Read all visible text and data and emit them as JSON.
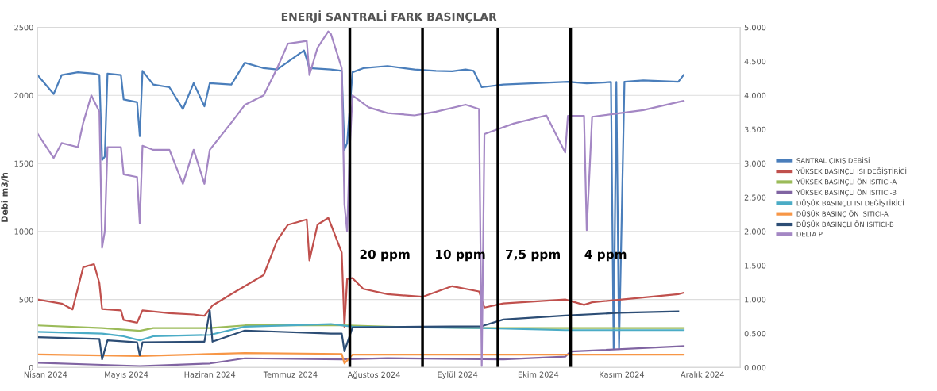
{
  "chart_data": {
    "type": "line",
    "title": "ENERJİ SANTRALİ FARK BASINÇLAR",
    "ylabel": "Debi m3/h",
    "xlim": [
      "2024-03-29",
      "2024-12-15"
    ],
    "xticks": [
      {
        "value": "2024-04-01",
        "label": "Nisan 2024"
      },
      {
        "value": "2024-05-01",
        "label": "Mayıs 2024"
      },
      {
        "value": "2024-06-01",
        "label": "Haziran 2024"
      },
      {
        "value": "2024-07-01",
        "label": "Temmuz 2024"
      },
      {
        "value": "2024-08-01",
        "label": "Ağustos 2024"
      },
      {
        "value": "2024-09-01",
        "label": "Eylül 2024"
      },
      {
        "value": "2024-10-01",
        "label": "Ekim 2024"
      },
      {
        "value": "2024-11-01",
        "label": "Kasım 2024"
      },
      {
        "value": "2024-12-01",
        "label": "Aralık 2024"
      }
    ],
    "ylim": [
      0,
      2500
    ],
    "yticks": [
      0,
      500,
      1000,
      1500,
      2000,
      2500
    ],
    "y2lim": [
      0,
      5
    ],
    "y2ticks": [
      {
        "value": 0,
        "label": "0,000"
      },
      {
        "value": 0.5,
        "label": "0,500"
      },
      {
        "value": 1,
        "label": "1,000"
      },
      {
        "value": 1.5,
        "label": "1,500"
      },
      {
        "value": 2,
        "label": "2,000"
      },
      {
        "value": 2.5,
        "label": "2,500"
      },
      {
        "value": 3,
        "label": "3,000"
      },
      {
        "value": 3.5,
        "label": "3,500"
      },
      {
        "value": 4,
        "label": "4,000"
      },
      {
        "value": 4.5,
        "label": "4,500"
      },
      {
        "value": 5,
        "label": "5,000"
      }
    ],
    "grid": "y",
    "legend": "right",
    "series": [
      {
        "name": "SANTRAL ÇIKIŞ DEBİSİ",
        "color": "#4a7ebb",
        "x": [
          "2024-03-29",
          "2024-04-04",
          "2024-04-07",
          "2024-04-13",
          "2024-04-19",
          "2024-04-21",
          "2024-04-22",
          "2024-04-23",
          "2024-04-24",
          "2024-04-29",
          "2024-04-30",
          "2024-05-05",
          "2024-05-06",
          "2024-05-07",
          "2024-05-11",
          "2024-05-17",
          "2024-05-22",
          "2024-05-26",
          "2024-05-30",
          "2024-06-01",
          "2024-06-09",
          "2024-06-14",
          "2024-06-21",
          "2024-06-26",
          "2024-07-06",
          "2024-07-08",
          "2024-07-16",
          "2024-07-20",
          "2024-07-21",
          "2024-07-22",
          "2024-07-24",
          "2024-07-28",
          "2024-08-06",
          "2024-08-16",
          "2024-08-24",
          "2024-08-30",
          "2024-09-04",
          "2024-09-07",
          "2024-09-10",
          "2024-09-18",
          "2024-09-30",
          "2024-10-12",
          "2024-10-19",
          "2024-10-28",
          "2024-10-29",
          "2024-10-30",
          "2024-10-31",
          "2024-11-02",
          "2024-11-09",
          "2024-11-22",
          "2024-11-24"
        ],
        "values": [
          2150,
          2010,
          2150,
          2170,
          2160,
          2150,
          1525,
          1550,
          2160,
          2150,
          1970,
          1950,
          1700,
          2180,
          2080,
          2060,
          1900,
          2090,
          1920,
          2090,
          2080,
          2240,
          2200,
          2190,
          2330,
          2200,
          2190,
          2180,
          1600,
          1650,
          2170,
          2200,
          2216,
          2190,
          2180,
          2177,
          2190,
          2180,
          2060,
          2080,
          2090,
          2100,
          2088,
          2098,
          140,
          2098,
          140,
          2100,
          2110,
          2100,
          2150
        ]
      },
      {
        "name": "YÜKSEK BASINÇLI ISI DEĞİŞTİRİCİ",
        "color": "#c0504d",
        "x": [
          "2024-03-29",
          "2024-04-07",
          "2024-04-11",
          "2024-04-15",
          "2024-04-19",
          "2024-04-21",
          "2024-04-22",
          "2024-04-29",
          "2024-04-30",
          "2024-05-05",
          "2024-05-07",
          "2024-05-17",
          "2024-05-26",
          "2024-05-30",
          "2024-06-02",
          "2024-06-09",
          "2024-06-21",
          "2024-06-26",
          "2024-06-30",
          "2024-07-07",
          "2024-07-08",
          "2024-07-11",
          "2024-07-15",
          "2024-07-16",
          "2024-07-20",
          "2024-07-21",
          "2024-07-22",
          "2024-07-24",
          "2024-07-28",
          "2024-08-06",
          "2024-08-19",
          "2024-08-30",
          "2024-09-09",
          "2024-09-11",
          "2024-09-18",
          "2024-10-11",
          "2024-10-18",
          "2024-10-21",
          "2024-11-22",
          "2024-11-24"
        ],
        "values": [
          500,
          470,
          427,
          738,
          760,
          620,
          430,
          420,
          350,
          330,
          420,
          400,
          390,
          380,
          456,
          540,
          680,
          933,
          1049,
          1088,
          787,
          1050,
          1100,
          1050,
          845,
          300,
          650,
          657,
          578,
          539,
          520,
          598,
          559,
          441,
          471,
          500,
          461,
          480,
          539,
          550
        ]
      },
      {
        "name": "YÜKSEK BASINÇLI ÖN ISITICI-A",
        "color": "#9bbb59",
        "x": [
          "2024-03-29",
          "2024-04-22",
          "2024-05-06",
          "2024-05-11",
          "2024-06-01",
          "2024-06-14",
          "2024-07-20",
          "2024-08-06",
          "2024-09-10",
          "2024-10-11",
          "2024-11-24"
        ],
        "values": [
          310,
          290,
          270,
          290,
          290,
          310,
          310,
          300,
          290,
          290,
          290
        ]
      },
      {
        "name": "YÜKSEK BASINÇLI ÖN ISITICI-B",
        "color": "#8064a2",
        "x": [
          "2024-03-29",
          "2024-04-22",
          "2024-05-06",
          "2024-06-01",
          "2024-06-14",
          "2024-07-20",
          "2024-08-06",
          "2024-09-18",
          "2024-10-11",
          "2024-10-13",
          "2024-11-24"
        ],
        "values": [
          35,
          20,
          10,
          30,
          68,
          60,
          69,
          60,
          80,
          118,
          157
        ]
      },
      {
        "name": "DÜŞÜK BASINÇLI ISI DEĞİŞTİRİCİ",
        "color": "#4bacc6",
        "x": [
          "2024-03-29",
          "2024-04-22",
          "2024-04-30",
          "2024-05-06",
          "2024-05-11",
          "2024-06-01",
          "2024-06-14",
          "2024-07-16",
          "2024-07-24",
          "2024-09-10",
          "2024-10-11",
          "2024-11-24"
        ],
        "values": [
          262,
          250,
          230,
          200,
          230,
          240,
          300,
          320,
          300,
          290,
          275,
          275
        ]
      },
      {
        "name": "DÜŞÜK BASINÇ ÖN ISITICI-A",
        "color": "#f79646",
        "x": [
          "2024-03-29",
          "2024-05-06",
          "2024-06-14",
          "2024-07-20",
          "2024-07-21",
          "2024-07-24",
          "2024-09-10",
          "2024-10-11",
          "2024-11-24"
        ],
        "values": [
          97,
          85,
          107,
          100,
          30,
          95,
          95,
          95,
          95
        ]
      },
      {
        "name": "DÜŞÜK BASINÇLI ÖN ISITICI-B",
        "color": "#2c4d75",
        "x": [
          "2024-03-29",
          "2024-04-21",
          "2024-04-22",
          "2024-04-24",
          "2024-05-05",
          "2024-05-06",
          "2024-05-07",
          "2024-05-30",
          "2024-06-01",
          "2024-06-02",
          "2024-06-14",
          "2024-07-16",
          "2024-07-20",
          "2024-07-21",
          "2024-07-24",
          "2024-08-19",
          "2024-09-10",
          "2024-09-18",
          "2024-10-11",
          "2024-10-31",
          "2024-11-22"
        ],
        "values": [
          223,
          210,
          60,
          200,
          185,
          90,
          185,
          190,
          420,
          190,
          272,
          250,
          250,
          120,
          294,
          300,
          304,
          353,
          382,
          402,
          412
        ]
      },
      {
        "name": "DELTA P",
        "color": "#a487c4",
        "x": [
          "2024-03-29",
          "2024-04-04",
          "2024-04-07",
          "2024-04-13",
          "2024-04-15",
          "2024-04-18",
          "2024-04-19",
          "2024-04-21",
          "2024-04-22",
          "2024-04-23",
          "2024-04-24",
          "2024-04-29",
          "2024-04-30",
          "2024-05-05",
          "2024-05-06",
          "2024-05-07",
          "2024-05-11",
          "2024-05-17",
          "2024-05-22",
          "2024-05-26",
          "2024-05-30",
          "2024-06-01",
          "2024-06-09",
          "2024-06-14",
          "2024-06-21",
          "2024-06-26",
          "2024-06-30",
          "2024-07-07",
          "2024-07-08",
          "2024-07-11",
          "2024-07-15",
          "2024-07-16",
          "2024-07-20",
          "2024-07-21",
          "2024-07-22",
          "2024-07-23",
          "2024-07-24",
          "2024-07-30",
          "2024-08-06",
          "2024-08-16",
          "2024-08-24",
          "2024-09-04",
          "2024-09-09",
          "2024-09-10",
          "2024-09-11",
          "2024-09-22",
          "2024-10-04",
          "2024-10-11",
          "2024-10-12",
          "2024-10-18",
          "2024-10-19",
          "2024-10-21",
          "2024-11-09",
          "2024-11-22",
          "2024-11-24"
        ],
        "values": [
          1720,
          1540,
          1650,
          1620,
          1800,
          2000,
          1960,
          1880,
          880,
          1000,
          1620,
          1620,
          1420,
          1400,
          1060,
          1630,
          1600,
          1600,
          1350,
          1600,
          1350,
          1600,
          1800,
          1930,
          2000,
          2200,
          2380,
          2400,
          2150,
          2350,
          2470,
          2450,
          2200,
          1200,
          1000,
          1620,
          2000,
          1912,
          1870,
          1853,
          1880,
          1932,
          1900,
          10,
          1716,
          1794,
          1853,
          1580,
          1850,
          1850,
          1010,
          1843,
          1892,
          1951,
          1960
        ]
      }
    ],
    "ref_lines": [
      {
        "axis": "x",
        "value": "2024-07-23",
        "color": "#000000"
      },
      {
        "axis": "x",
        "value": "2024-08-19",
        "color": "#000000"
      },
      {
        "axis": "x",
        "value": "2024-09-16",
        "color": "#000000"
      },
      {
        "axis": "x",
        "value": "2024-10-13",
        "color": "#000000"
      }
    ],
    "annotations": [
      "20 ppm",
      "10 ppm",
      "7,5 ppm",
      "4 ppm"
    ]
  }
}
